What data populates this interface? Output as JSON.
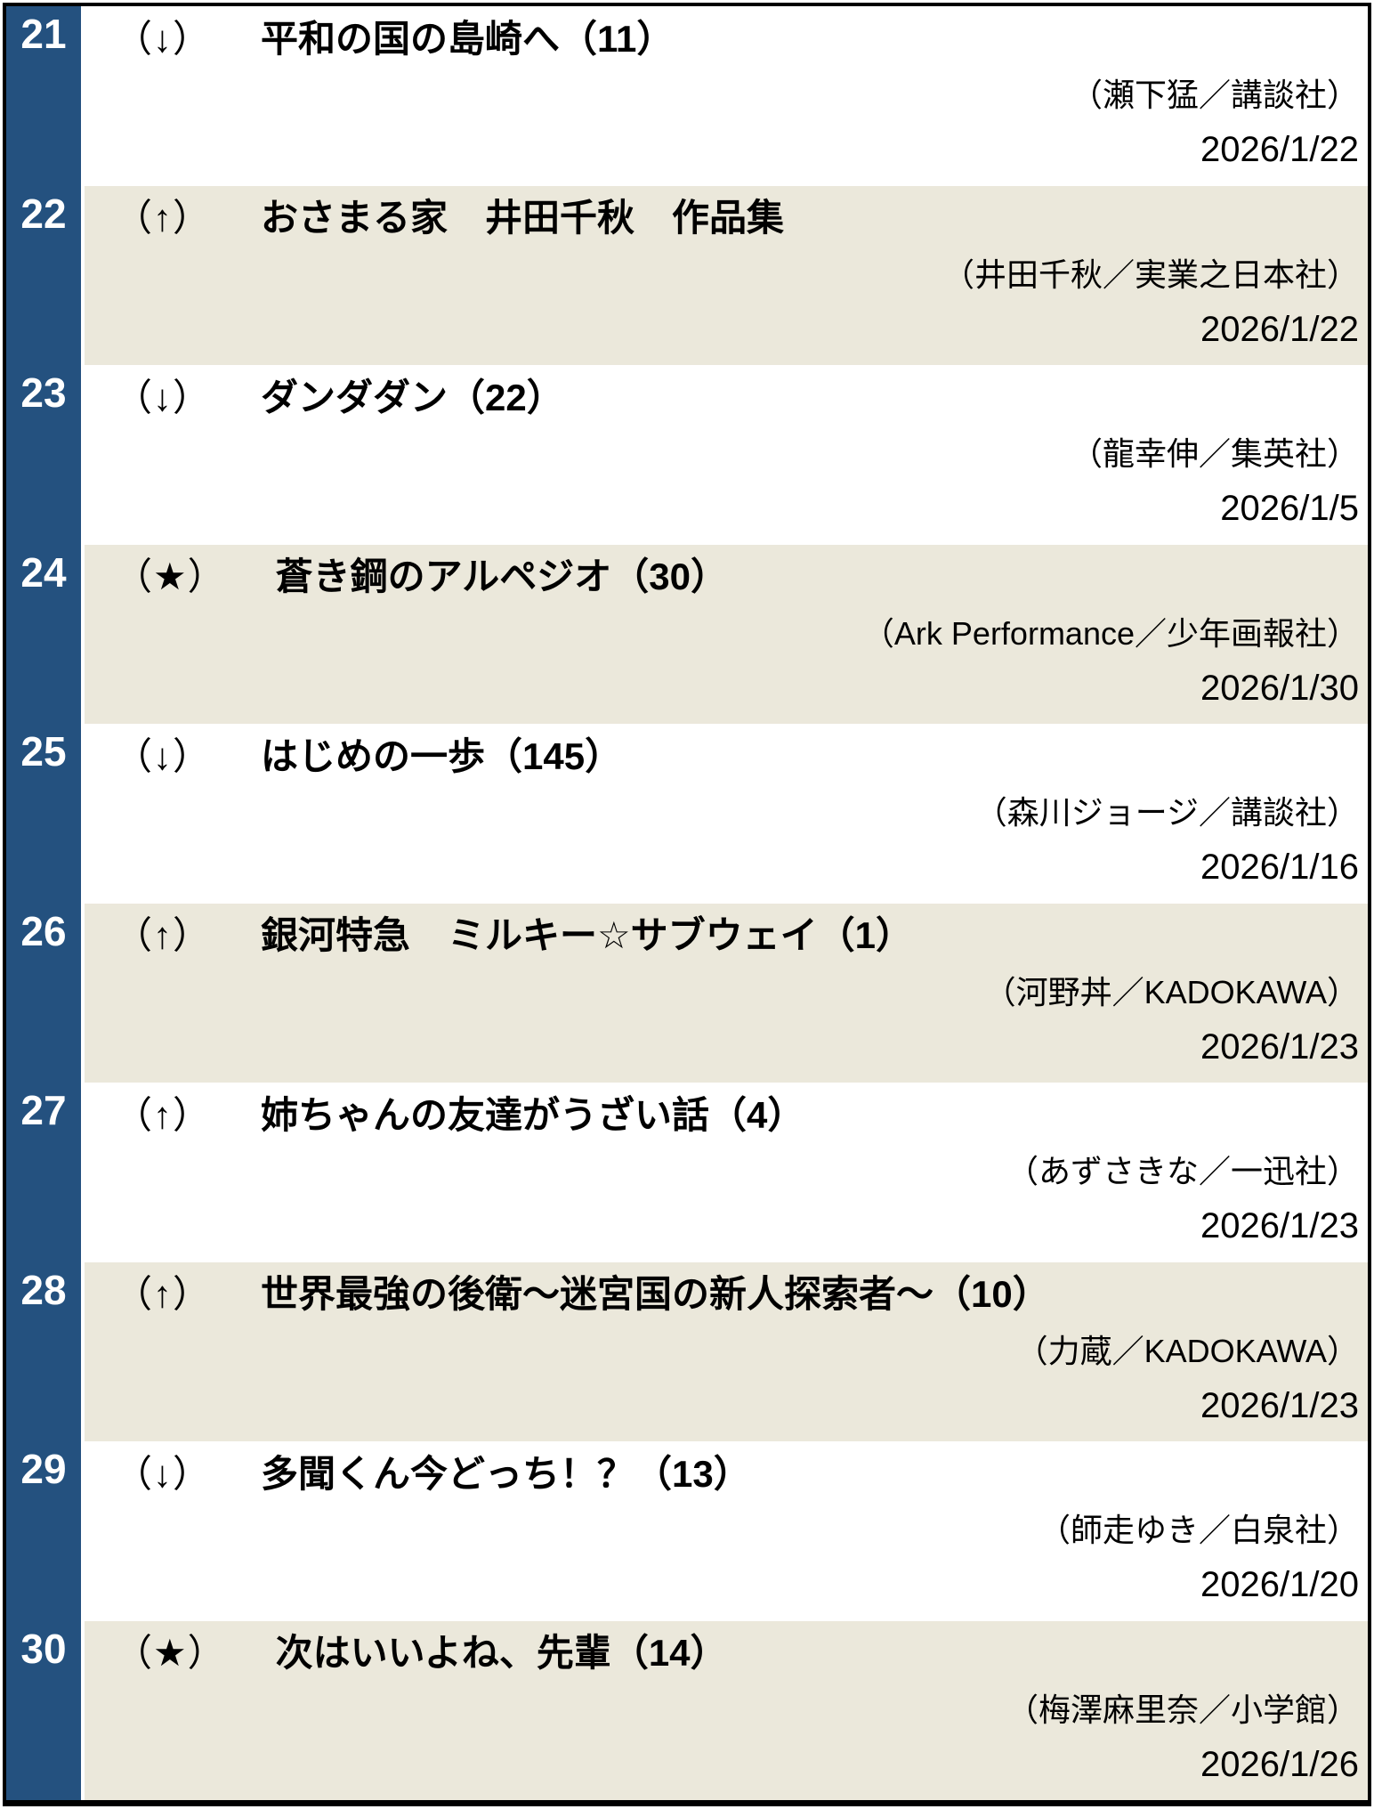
{
  "table": {
    "rows": [
      {
        "rank": "21",
        "indicator": "（↓）",
        "title": "平和の国の島崎へ（11）",
        "publisher": "（瀬下猛／講談社）",
        "date": "2026/1/22"
      },
      {
        "rank": "22",
        "indicator": "（↑）",
        "title": "おさまる家　井田千秋　作品集",
        "publisher": "（井田千秋／実業之日本社）",
        "date": "2026/1/22"
      },
      {
        "rank": "23",
        "indicator": "（↓）",
        "title": "ダンダダン（22）",
        "publisher": "（龍幸伸／集英社）",
        "date": "2026/1/5"
      },
      {
        "rank": "24",
        "indicator": "（★）",
        "title": "蒼き鋼のアルペジオ（30）",
        "publisher": "（Ark Performance／少年画報社）",
        "date": "2026/1/30"
      },
      {
        "rank": "25",
        "indicator": "（↓）",
        "title": "はじめの一歩（145）",
        "publisher": "（森川ジョージ／講談社）",
        "date": "2026/1/16"
      },
      {
        "rank": "26",
        "indicator": "（↑）",
        "title": "銀河特急　ミルキー☆サブウェイ（1）",
        "publisher": "（河野丼／KADOKAWA）",
        "date": "2026/1/23"
      },
      {
        "rank": "27",
        "indicator": "（↑）",
        "title": "姉ちゃんの友達がうざい話（4）",
        "publisher": "（あずさきな／一迅社）",
        "date": "2026/1/23"
      },
      {
        "rank": "28",
        "indicator": "（↑）",
        "title": "世界最強の後衛～迷宮国の新人探索者～（10）",
        "publisher": "（力蔵／KADOKAWA）",
        "date": "2026/1/23"
      },
      {
        "rank": "29",
        "indicator": "（↓）",
        "title": "多聞くん今どっち！？（13）",
        "publisher": "（師走ゆき／白泉社）",
        "date": "2026/1/20"
      },
      {
        "rank": "30",
        "indicator": "（★）",
        "title": "次はいいよね、先輩（14）",
        "publisher": "（梅澤麻里奈／小学館）",
        "date": "2026/1/26"
      }
    ]
  },
  "colors": {
    "rank_column": "#24517F",
    "rank_text": "#FFFFFF",
    "row_base": "#FFFFFF",
    "row_alt": "#EBE8DB",
    "border": "#000000",
    "text": "#000000"
  }
}
